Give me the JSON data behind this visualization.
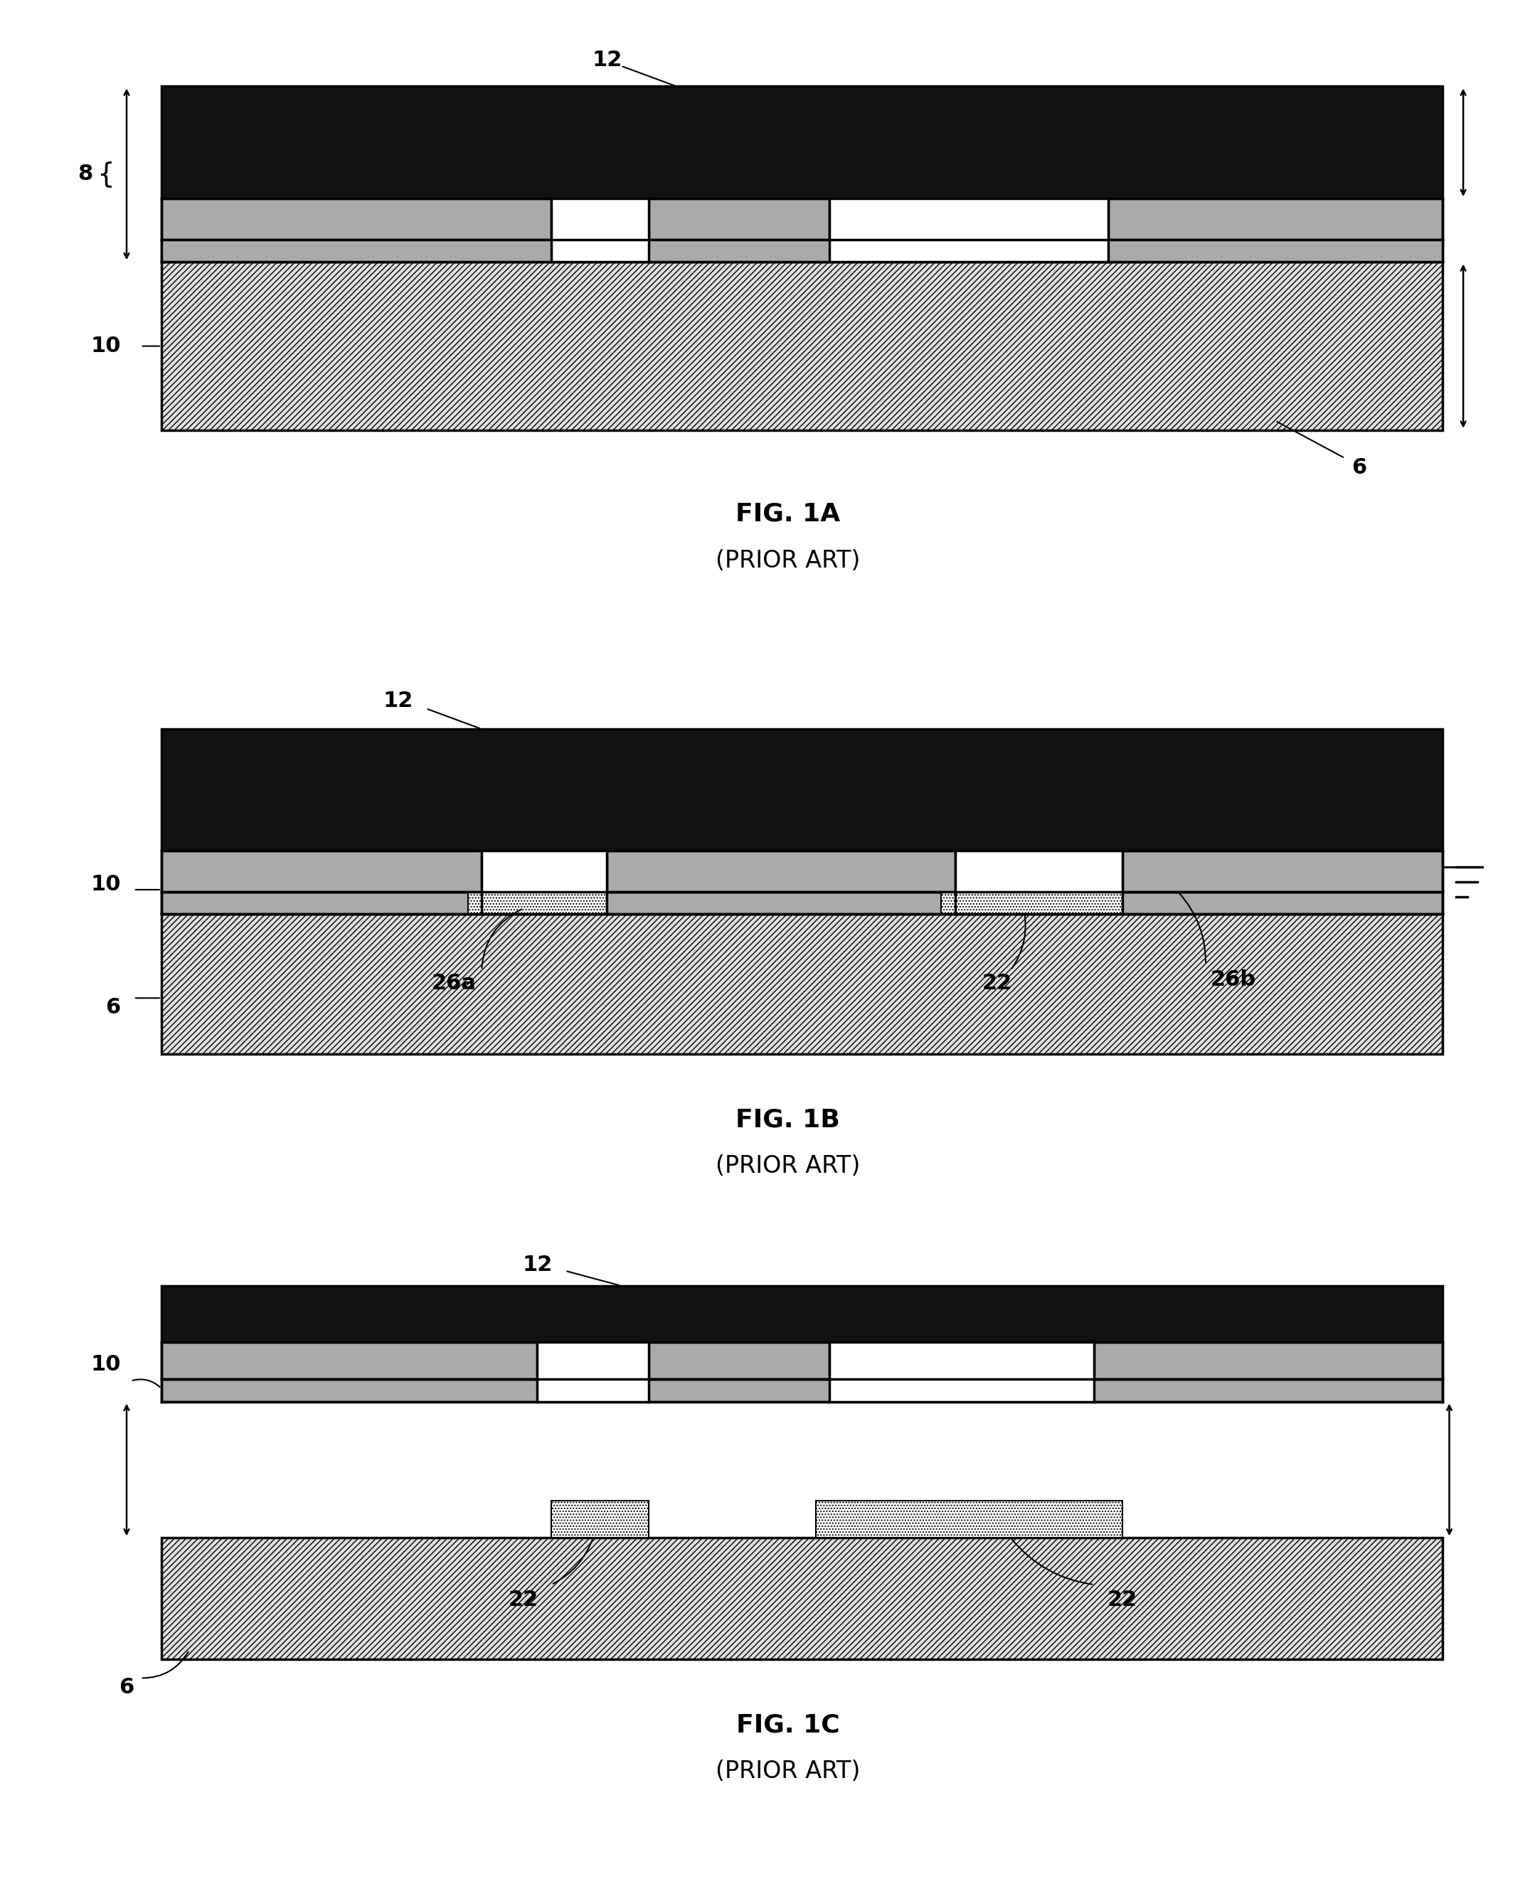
{
  "bg_color": "#ffffff",
  "black_fill": "#111111",
  "gray_fill": "#aaaaaa",
  "light_gray": "#cccccc",
  "hatch_bg": "#e0e0e0",
  "fig1a": {
    "title": "FIG. 1A",
    "subtitle": "(PRIOR ART)",
    "label_12": "12",
    "label_8": "8",
    "label_10": "10",
    "label_6": "6"
  },
  "fig1b": {
    "title": "FIG. 1B",
    "subtitle": "(PRIOR ART)",
    "label_12": "12",
    "label_10": "10",
    "label_6": "6",
    "label_26a": "26a",
    "label_22": "22",
    "label_26b": "26b"
  },
  "fig1c": {
    "title": "FIG. 1C",
    "subtitle": "(PRIOR ART)",
    "label_12": "12",
    "label_10": "10",
    "label_6": "6",
    "label_22a": "22",
    "label_22b": "22"
  }
}
